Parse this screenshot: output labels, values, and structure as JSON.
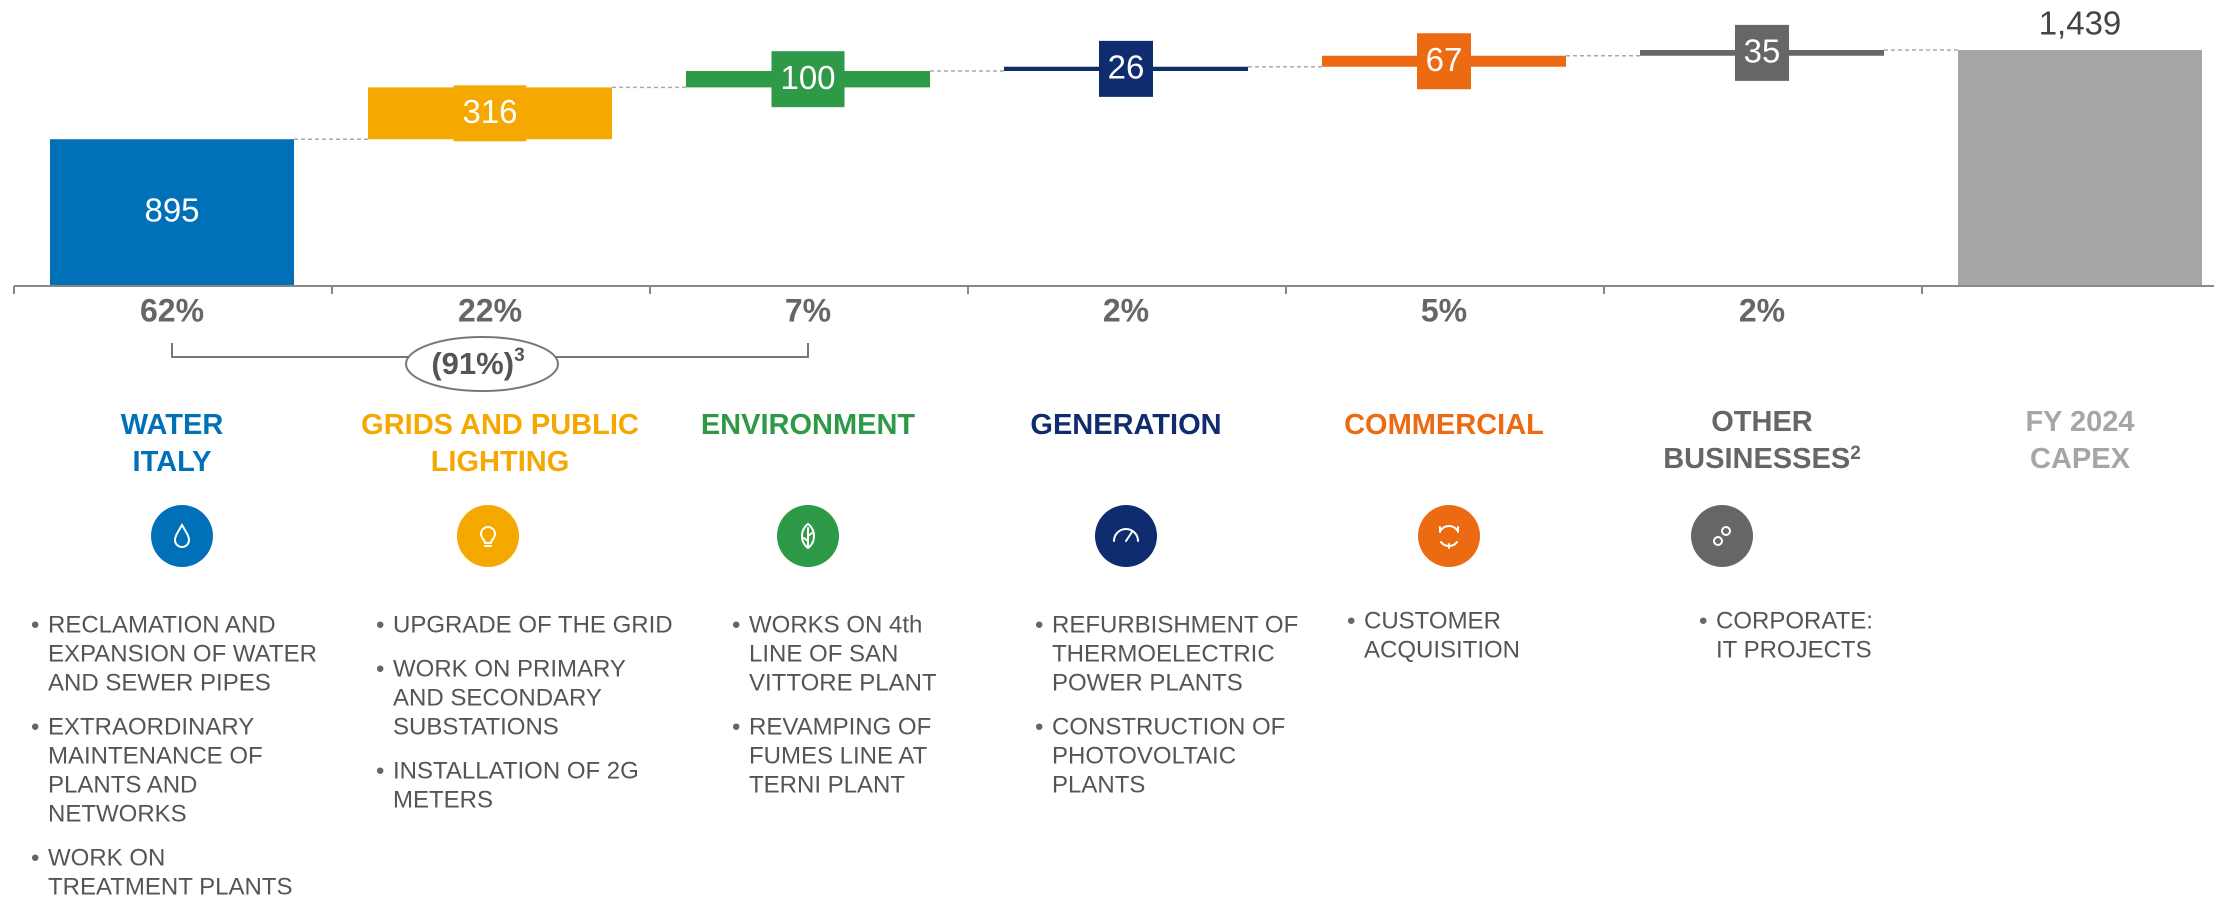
{
  "chart_data": {
    "type": "waterfall",
    "categories": [
      "WATER ITALY",
      "GRIDS AND PUBLIC LIGHTING",
      "ENVIRONMENT",
      "GENERATION",
      "COMMERCIAL",
      "OTHER BUSINESSES",
      "FY 2024 CAPEX"
    ],
    "category_superscripts": [
      null,
      null,
      null,
      null,
      null,
      "2",
      null
    ],
    "values": [
      895,
      316,
      100,
      26,
      67,
      35,
      1439
    ],
    "value_labels": [
      "895",
      "316",
      "100",
      "26",
      "67",
      "35",
      "1,439"
    ],
    "is_total": [
      false,
      false,
      false,
      false,
      false,
      false,
      true
    ],
    "colors": [
      "#0070b8",
      "#f5a800",
      "#2e9a47",
      "#0e2c6e",
      "#ec6b12",
      "#666666",
      "#a6a6a6"
    ],
    "shares": [
      "62%",
      "22%",
      "7%",
      "2%",
      "5%",
      "2%",
      null
    ],
    "group_share": "(91%)",
    "group_share_superscript": "3",
    "ylim": [
      0,
      1500
    ],
    "bullets": [
      [
        [
          "RECLAMATION AND",
          "EXPANSION OF WATER",
          "AND SEWER PIPES"
        ],
        [
          "EXTRAORDINARY",
          "MAINTENANCE OF",
          "PLANTS AND",
          "NETWORKS"
        ],
        [
          "WORK ON",
          "TREATMENT PLANTS"
        ]
      ],
      [
        [
          "UPGRADE OF THE GRID"
        ],
        [
          "WORK ON PRIMARY",
          "AND SECONDARY",
          "SUBSTATIONS"
        ],
        [
          "INSTALLATION OF 2G",
          "METERS"
        ]
      ],
      [
        [
          "WORKS ON 4th",
          "LINE OF SAN",
          "VITTORE PLANT"
        ],
        [
          "REVAMPING OF",
          "FUMES LINE AT",
          "TERNI PLANT"
        ]
      ],
      [
        [
          "REFURBISHMENT OF",
          "THERMOELECTRIC",
          "POWER PLANTS"
        ],
        [
          "CONSTRUCTION OF",
          "PHOTOVOLTAIC",
          "PLANTS"
        ]
      ],
      [
        [
          "CUSTOMER",
          "ACQUISITION"
        ]
      ],
      [
        [
          "CORPORATE:",
          "IT PROJECTS"
        ]
      ],
      []
    ]
  }
}
